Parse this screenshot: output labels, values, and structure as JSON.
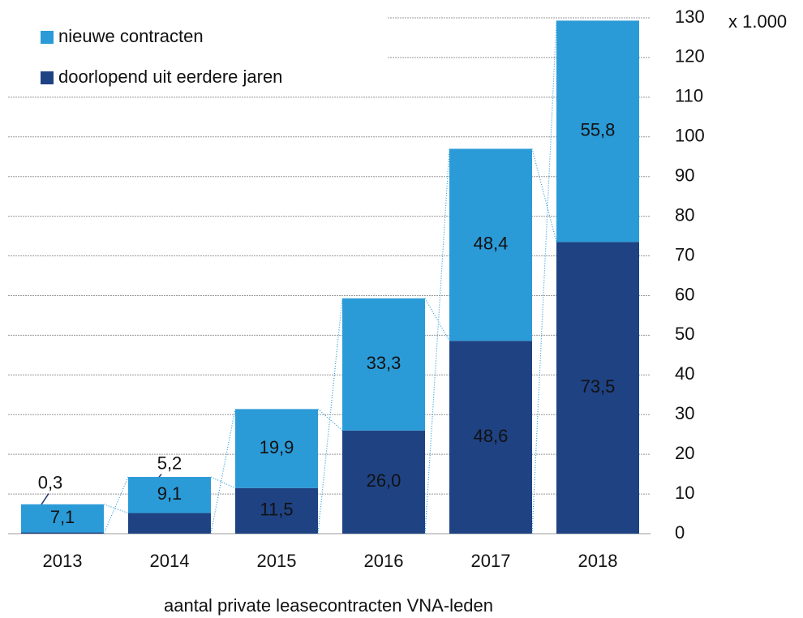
{
  "chart_data": {
    "type": "stacked_bar",
    "x_label": "aantal private leasecontracten VNA-leden",
    "unit_label": "x 1.000",
    "categories": [
      "2013",
      "2014",
      "2015",
      "2016",
      "2017",
      "2018"
    ],
    "series": [
      {
        "name": "doorlopend uit eerdere jaren",
        "color": "#1f4283",
        "values": [
          0.3,
          5.2,
          11.5,
          26.0,
          48.6,
          73.5
        ],
        "value_labels": [
          "0,3",
          "5,2",
          "11,5",
          "26,0",
          "48,6",
          "73,5"
        ]
      },
      {
        "name": "nieuwe contracten",
        "color": "#2b9bd8",
        "values": [
          7.1,
          9.1,
          19.9,
          33.3,
          48.4,
          55.8
        ],
        "value_labels": [
          "7,1",
          "9,1",
          "19,9",
          "33,3",
          "48,4",
          "55,8"
        ]
      }
    ],
    "ylim": [
      0,
      130
    ],
    "yticks": [
      0,
      10,
      20,
      30,
      40,
      50,
      60,
      70,
      80,
      90,
      100,
      110,
      120,
      130
    ],
    "grid": true,
    "legend": "top-left",
    "y_axis_side": "right"
  }
}
